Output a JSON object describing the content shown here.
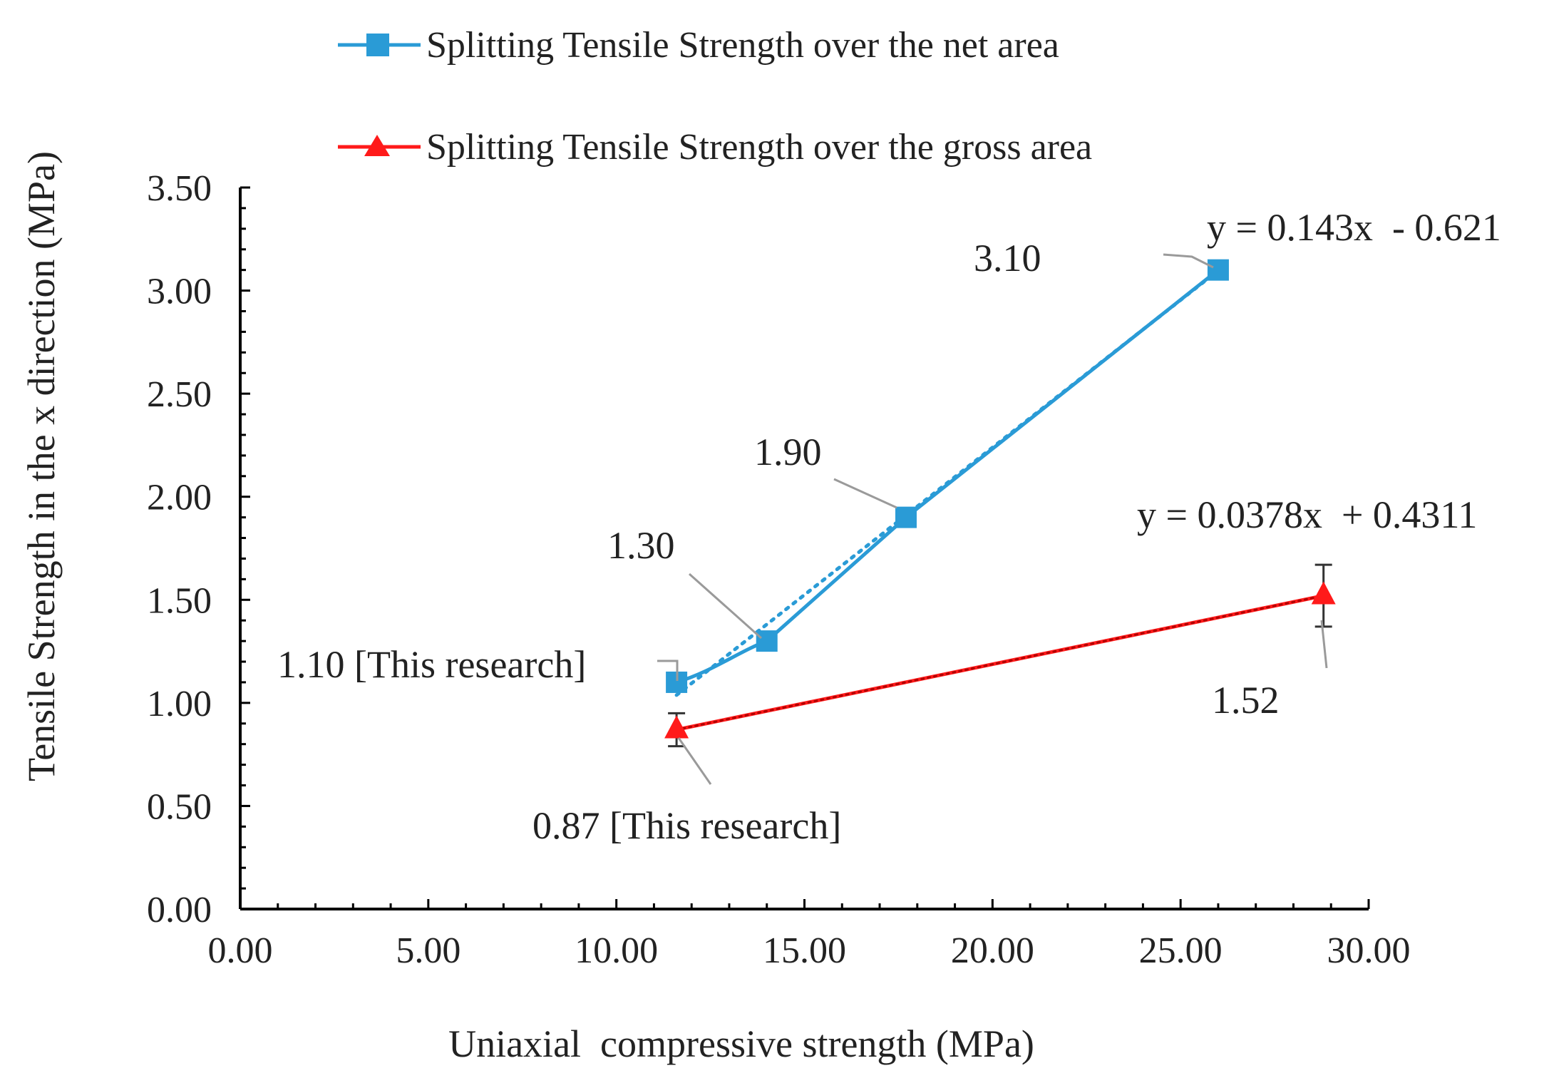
{
  "chart_data": {
    "type": "scatter",
    "title": "",
    "xlabel": "Uniaxial  compressive strength (MPa)",
    "ylabel": "Tensile Strength in the x direction (MPa)",
    "xlim": [
      0,
      30
    ],
    "ylim": [
      0,
      3.5
    ],
    "x_ticks": [
      "0.00",
      "5.00",
      "10.00",
      "15.00",
      "20.00",
      "25.00",
      "30.00"
    ],
    "y_ticks": [
      "0.00",
      "0.50",
      "1.00",
      "1.50",
      "2.00",
      "2.50",
      "3.00",
      "3.50"
    ],
    "grid": false,
    "legend_position": "top-center",
    "series": [
      {
        "name": "Splitting Tensile Strength over the net area",
        "color": "#2A9BD6",
        "marker": "square",
        "x": [
          11.6,
          14.0,
          17.7,
          26.0
        ],
        "y": [
          1.1,
          1.3,
          1.9,
          3.1
        ],
        "data_labels": [
          "1.10 [This research]",
          "1.30",
          "1.90",
          "3.10"
        ],
        "trendline": {
          "slope": 0.143,
          "intercept": -0.621,
          "equation": "y = 0.143x  - 0.621"
        }
      },
      {
        "name": "Splitting Tensile Strength over the gross area",
        "color": "#FF1A1A",
        "marker": "triangle",
        "x": [
          11.6,
          28.8
        ],
        "y": [
          0.87,
          1.52
        ],
        "error": [
          0.08,
          0.15
        ],
        "data_labels": [
          "0.87 [This research]",
          "1.52"
        ],
        "trendline": {
          "slope": 0.0378,
          "intercept": 0.4311,
          "equation": "y = 0.0378x  + 0.4311"
        }
      }
    ]
  }
}
